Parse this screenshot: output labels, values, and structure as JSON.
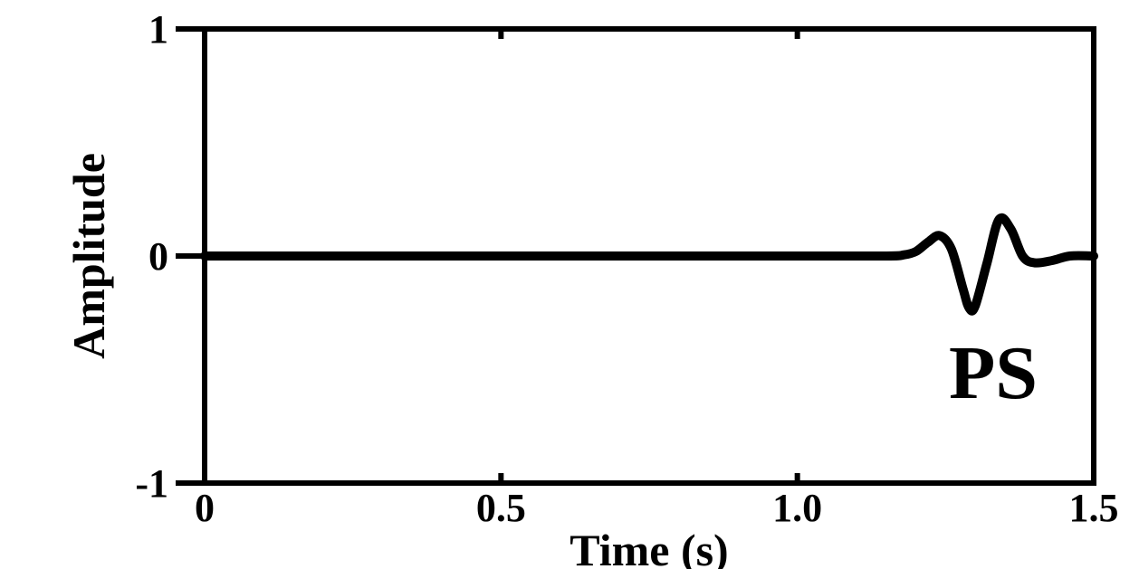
{
  "chart_data": {
    "type": "line",
    "title": "",
    "xlabel": "Time (s)",
    "ylabel": "Amplitude",
    "xlim": [
      0,
      1.5
    ],
    "ylim": [
      -1,
      1
    ],
    "x_ticks": [
      0,
      0.5,
      1.0,
      1.5
    ],
    "x_tick_labels": [
      "0",
      "0.5",
      "1.0",
      "1.5"
    ],
    "y_ticks": [
      -1,
      0,
      1
    ],
    "y_tick_labels": [
      "-1",
      "0",
      "1"
    ],
    "grid": false,
    "legend": "none",
    "annotation": "PS",
    "line_color": "#000000",
    "series": [
      {
        "x": [
          0,
          0.25,
          0.5,
          0.75,
          1.0,
          1.15,
          1.18,
          1.2,
          1.22,
          1.24,
          1.26,
          1.28,
          1.29,
          1.3,
          1.32,
          1.34,
          1.36,
          1.38,
          1.4,
          1.43,
          1.46,
          1.5
        ],
        "values": [
          0,
          0,
          0,
          0,
          0,
          0,
          0.005,
          0.02,
          0.06,
          0.09,
          0.03,
          -0.15,
          -0.23,
          -0.22,
          -0.03,
          0.16,
          0.12,
          0.0,
          -0.03,
          -0.02,
          0.0,
          0.0
        ]
      }
    ]
  }
}
